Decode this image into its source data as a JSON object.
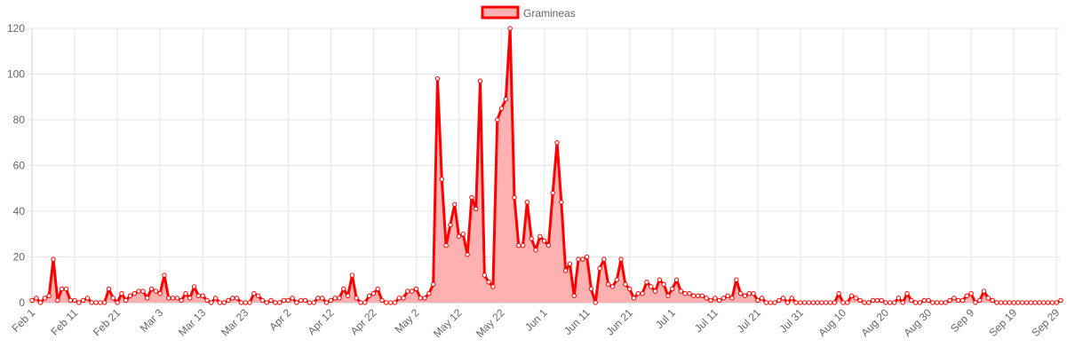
{
  "chart_data": {
    "type": "area",
    "title": "",
    "xlabel": "",
    "ylabel": "",
    "ylim": [
      0,
      120
    ],
    "yticks": [
      0,
      20,
      40,
      60,
      80,
      100,
      120
    ],
    "grid": true,
    "legend_position": "top-center",
    "x_start": "Feb 1",
    "x_end": "Sep 29",
    "xticks": [
      "Feb 1",
      "Feb 11",
      "Feb 21",
      "Mar 3",
      "Mar 13",
      "Mar 23",
      "Apr 2",
      "Apr 12",
      "Apr 22",
      "May 2",
      "May 12",
      "May 22",
      "Jun 1",
      "Jun 11",
      "Jun 21",
      "Jul 1",
      "Jul 11",
      "Jul 21",
      "Jul 31",
      "Aug 10",
      "Aug 20",
      "Aug 30",
      "Sep 9",
      "Sep 19",
      "Sep 29"
    ],
    "series": [
      {
        "name": "Gramineas",
        "color": "#ff0000",
        "fill": "#ffb1b1",
        "values": [
          1,
          2,
          0,
          2,
          3,
          19,
          1,
          6,
          6,
          1,
          1,
          0,
          1,
          2,
          0,
          0,
          0,
          0,
          6,
          2,
          0,
          4,
          1,
          3,
          4,
          5,
          5,
          2,
          6,
          5,
          4,
          12,
          2,
          2,
          2,
          1,
          4,
          2,
          7,
          3,
          3,
          1,
          0,
          2,
          0,
          0,
          1,
          2,
          2,
          0,
          0,
          0,
          4,
          3,
          1,
          0,
          1,
          0,
          0,
          1,
          1,
          2,
          0,
          1,
          1,
          0,
          0,
          2,
          2,
          0,
          1,
          2,
          2,
          6,
          3,
          12,
          2,
          0,
          0,
          3,
          4,
          6,
          1,
          0,
          0,
          0,
          2,
          2,
          5,
          5,
          6,
          2,
          2,
          4,
          8,
          98,
          54,
          25,
          34,
          43,
          29,
          30,
          21,
          46,
          41,
          97,
          12,
          9,
          7,
          80,
          85,
          89,
          120,
          46,
          25,
          25,
          44,
          28,
          23,
          29,
          27,
          25,
          48,
          70,
          44,
          14,
          17,
          3,
          19,
          19,
          20,
          6,
          0,
          15,
          19,
          8,
          7,
          10,
          19,
          8,
          6,
          2,
          4,
          4,
          9,
          7,
          5,
          10,
          8,
          3,
          6,
          10,
          5,
          4,
          4,
          3,
          3,
          3,
          2,
          1,
          2,
          1,
          2,
          3,
          2,
          10,
          4,
          3,
          4,
          4,
          1,
          2,
          0,
          0,
          0,
          1,
          2,
          0,
          2,
          0,
          0,
          0,
          0,
          0,
          0,
          0,
          0,
          0,
          0,
          4,
          0,
          0,
          3,
          2,
          1,
          0,
          0,
          1,
          1,
          1,
          0,
          0,
          0,
          2,
          0,
          4,
          1,
          0,
          0,
          1,
          1,
          0,
          0,
          0,
          0,
          1,
          2,
          1,
          1,
          3,
          4,
          0,
          1,
          5,
          2,
          1,
          0,
          0,
          0,
          0,
          0,
          0,
          0,
          0,
          0,
          0,
          0,
          0,
          0,
          0,
          0,
          1
        ]
      }
    ]
  }
}
